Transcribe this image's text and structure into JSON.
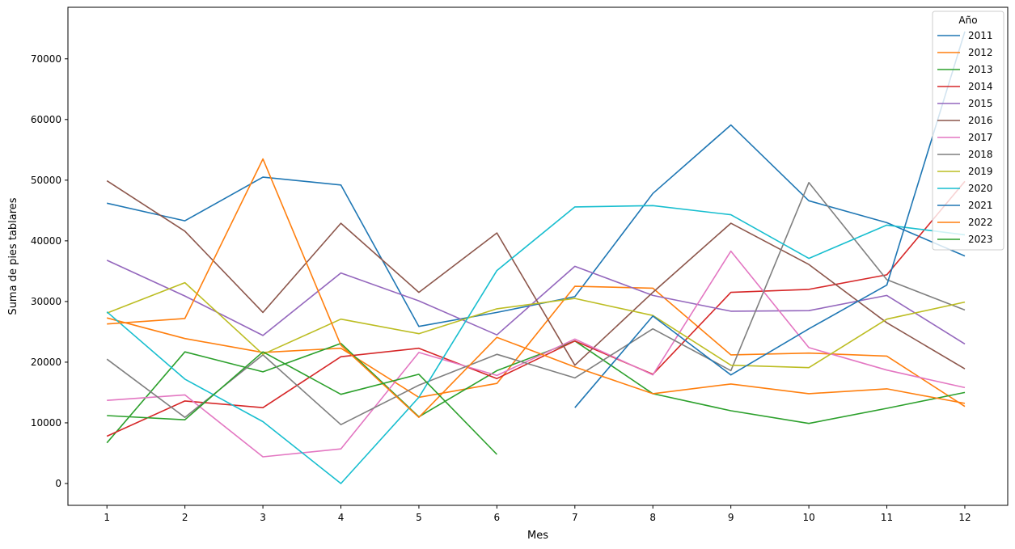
{
  "chart_data": {
    "type": "line",
    "title": "",
    "xlabel": "Mes",
    "ylabel": "Suma de pies tablares",
    "xlim": [
      0.5,
      12.55
    ],
    "ylim": [
      -3600,
      78500
    ],
    "x_ticks": [
      1,
      2,
      3,
      4,
      5,
      6,
      7,
      8,
      9,
      10,
      11,
      12
    ],
    "y_ticks": [
      0,
      10000,
      20000,
      30000,
      40000,
      50000,
      60000,
      70000
    ],
    "grid": false,
    "legend": {
      "title": "Año",
      "placement": "top-right"
    },
    "series": [
      {
        "name": "2011",
        "color": "#1f77b4",
        "x": [
          1,
          2,
          3,
          4,
          5,
          6,
          7,
          8,
          9,
          10,
          11,
          12
        ],
        "y": [
          46200,
          43300,
          50500,
          49200,
          25900,
          28200,
          30800,
          47800,
          59100,
          46600,
          43000,
          37500
        ]
      },
      {
        "name": "2012",
        "color": "#ff7f0e",
        "x": [
          1,
          2,
          3,
          4,
          5,
          6,
          7,
          8,
          9,
          10,
          11,
          12
        ],
        "y": [
          27300,
          23900,
          21600,
          22300,
          14200,
          16500,
          32500,
          32200,
          21200,
          21500,
          21000,
          12700
        ]
      },
      {
        "name": "2013",
        "color": "#2ca02c",
        "x": [
          1,
          2,
          3,
          4,
          5,
          6,
          7,
          8,
          9,
          10,
          11,
          12
        ],
        "y": [
          6700,
          21700,
          18400,
          23100,
          11000,
          18600,
          23500,
          14800,
          12000,
          9900,
          12400,
          15000
        ]
      },
      {
        "name": "2014",
        "color": "#d62728",
        "x": [
          1,
          2,
          3,
          4,
          5,
          6,
          7,
          8,
          9,
          10,
          11,
          12
        ],
        "y": [
          7800,
          13600,
          12500,
          20900,
          22300,
          17300,
          23500,
          18000,
          31500,
          32000,
          34400,
          49800
        ]
      },
      {
        "name": "2015",
        "color": "#9467bd",
        "x": [
          1,
          2,
          3,
          4,
          5,
          6,
          7,
          8,
          9,
          10,
          11,
          12
        ],
        "y": [
          36800,
          30900,
          24400,
          34700,
          30100,
          24500,
          35800,
          31000,
          28400,
          28500,
          31000,
          23000
        ]
      },
      {
        "name": "2016",
        "color": "#8c564b",
        "x": [
          1,
          2,
          3,
          4,
          5,
          6,
          7,
          8,
          9,
          10,
          11,
          12
        ],
        "y": [
          49900,
          41600,
          28200,
          42900,
          31500,
          41300,
          19500,
          31500,
          42900,
          36100,
          26500,
          18900
        ]
      },
      {
        "name": "2017",
        "color": "#e377c2",
        "x": [
          1,
          2,
          3,
          4,
          5,
          6,
          7,
          8,
          9,
          10,
          11,
          12
        ],
        "y": [
          13700,
          14600,
          4400,
          5700,
          21600,
          17800,
          23800,
          17900,
          38300,
          22400,
          18700,
          15800
        ]
      },
      {
        "name": "2018",
        "color": "#7f7f7f",
        "x": [
          1,
          2,
          3,
          4,
          5,
          6,
          7,
          8,
          9,
          10,
          11,
          12
        ],
        "y": [
          20500,
          10900,
          21200,
          9700,
          16200,
          21300,
          17400,
          25500,
          18600,
          49600,
          33600,
          28600
        ]
      },
      {
        "name": "2019",
        "color": "#bcbd22",
        "x": [
          1,
          2,
          3,
          4,
          5,
          6,
          7,
          8,
          9,
          10,
          11,
          12
        ],
        "y": [
          28100,
          33100,
          21300,
          27100,
          24700,
          28800,
          30500,
          27700,
          19500,
          19100,
          27100,
          29900
        ]
      },
      {
        "name": "2020",
        "color": "#17becf",
        "x": [
          1,
          2,
          3,
          4,
          5,
          6,
          7,
          8,
          9,
          10,
          11,
          12
        ],
        "y": [
          28300,
          17200,
          10200,
          0,
          14200,
          35100,
          45600,
          45800,
          44300,
          37100,
          42600,
          41000
        ]
      },
      {
        "name": "2021",
        "color": "#1f77b4",
        "x": [
          7,
          8,
          9,
          10,
          11,
          12
        ],
        "y": [
          12500,
          27600,
          17900,
          25500,
          32700,
          74500
        ]
      },
      {
        "name": "2022",
        "color": "#ff7f0e",
        "x": [
          1,
          2,
          3,
          4,
          5,
          6,
          7,
          8,
          9,
          10,
          11,
          12
        ],
        "y": [
          26300,
          27200,
          53500,
          22800,
          10900,
          24100,
          19200,
          14800,
          16400,
          14800,
          15600,
          13200
        ]
      },
      {
        "name": "2023",
        "color": "#2ca02c",
        "x": [
          1,
          2,
          3,
          4,
          5,
          6
        ],
        "y": [
          11200,
          10500,
          21700,
          14700,
          18000,
          4800
        ]
      }
    ]
  }
}
